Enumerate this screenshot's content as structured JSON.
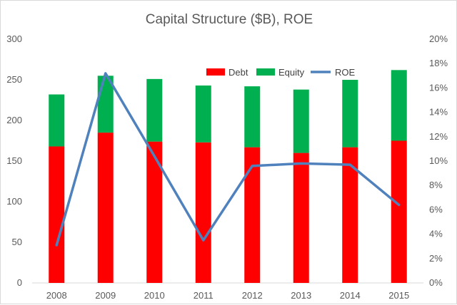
{
  "chart_data": {
    "type": "bar+line",
    "title": "Capital Structure ($B), ROE",
    "categories": [
      "2008",
      "2009",
      "2010",
      "2011",
      "2012",
      "2013",
      "2014",
      "2015"
    ],
    "series": [
      {
        "name": "Debt",
        "kind": "stacked-bar",
        "axis": "left",
        "color": "#ff0000",
        "values": [
          168,
          185,
          174,
          173,
          167,
          160,
          167,
          175
        ]
      },
      {
        "name": "Equity",
        "kind": "stacked-bar",
        "axis": "left",
        "color": "#00b050",
        "values": [
          64,
          70,
          77,
          70,
          75,
          78,
          83,
          87
        ]
      },
      {
        "name": "ROE",
        "kind": "line",
        "axis": "right",
        "color": "#4f81bd",
        "values": [
          0.031,
          0.172,
          0.104,
          0.035,
          0.096,
          0.098,
          0.097,
          0.064
        ]
      }
    ],
    "y_left": {
      "min": 0,
      "max": 300,
      "ticks": [
        "0",
        "50",
        "100",
        "150",
        "200",
        "250",
        "300"
      ]
    },
    "y_right": {
      "min": 0,
      "max": 0.2,
      "ticks": [
        "0%",
        "2%",
        "4%",
        "6%",
        "8%",
        "10%",
        "12%",
        "14%",
        "16%",
        "18%",
        "20%"
      ]
    },
    "grid": false,
    "legend_position": "top-right"
  }
}
